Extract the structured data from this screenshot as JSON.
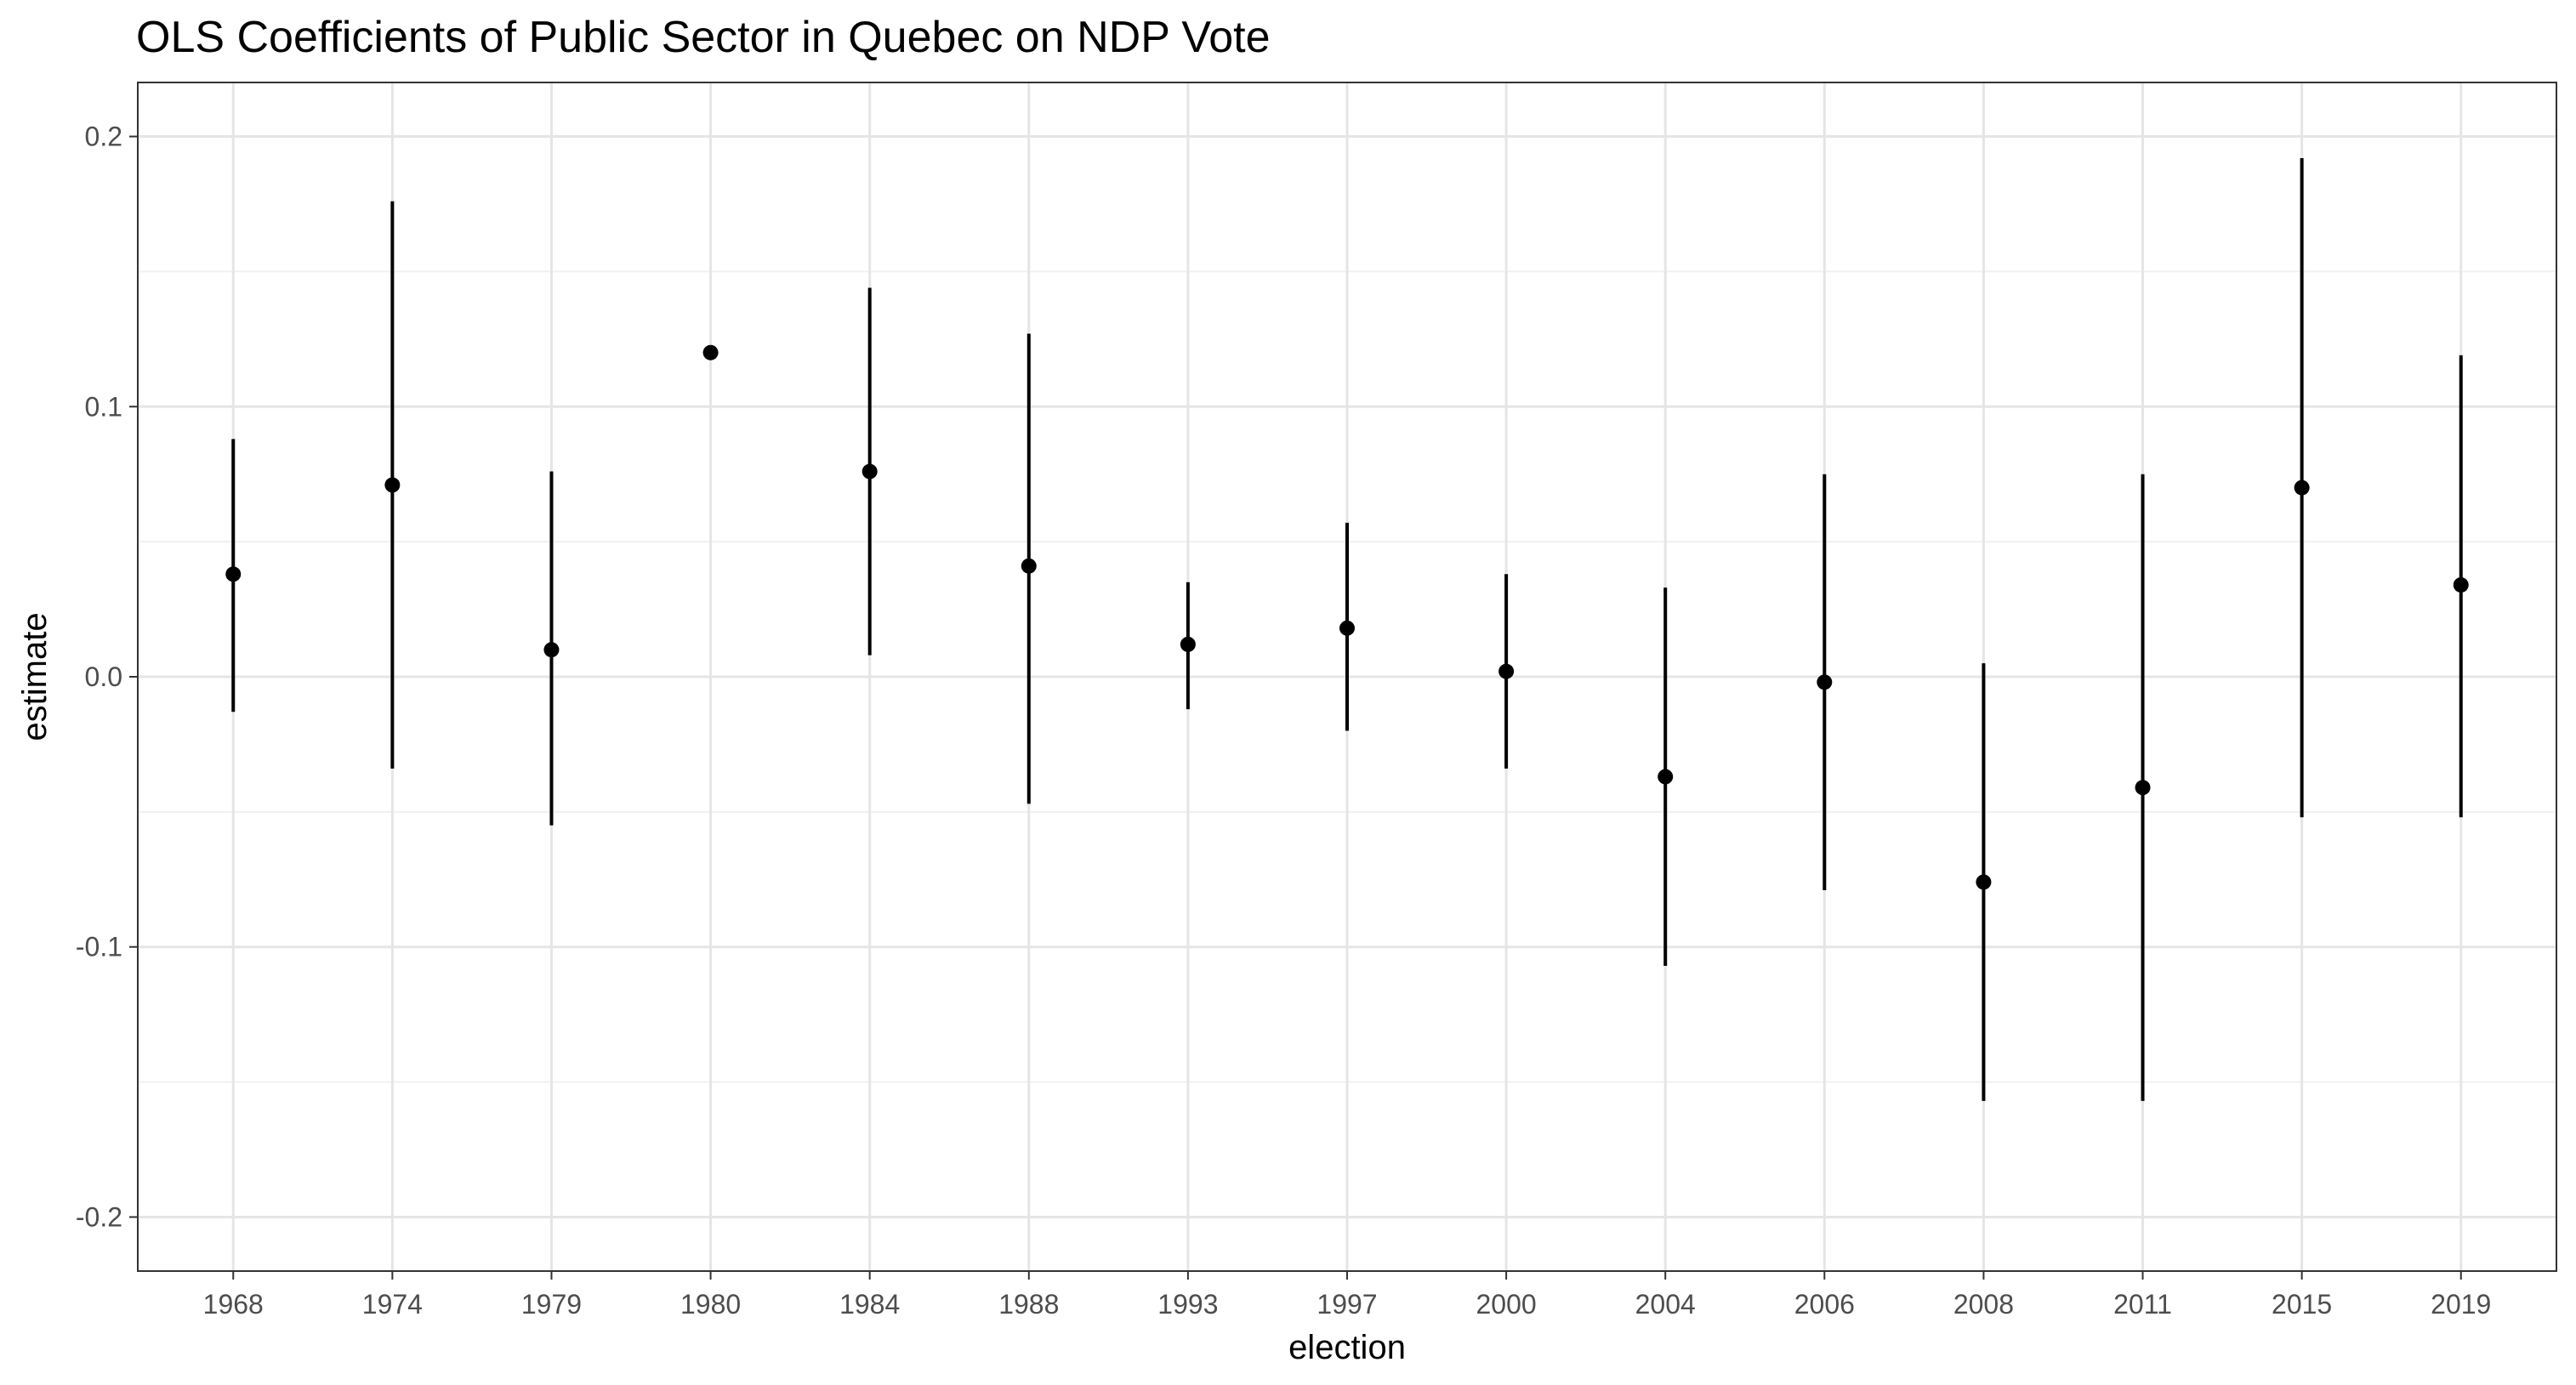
{
  "chart_data": {
    "type": "scatter",
    "title": "OLS Coefficients of Public Sector in Quebec on NDP Vote",
    "xlabel": "election",
    "ylabel": "estimate",
    "categories": [
      "1968",
      "1974",
      "1979",
      "1980",
      "1984",
      "1988",
      "1993",
      "1997",
      "2000",
      "2004",
      "2006",
      "2008",
      "2011",
      "2015",
      "2019"
    ],
    "estimate": [
      0.038,
      0.071,
      0.01,
      0.12,
      0.076,
      0.041,
      0.012,
      0.018,
      0.002,
      -0.037,
      -0.002,
      -0.076,
      -0.041,
      0.07,
      0.034
    ],
    "conf_low": [
      -0.013,
      -0.034,
      -0.055,
      null,
      0.008,
      -0.047,
      -0.012,
      -0.02,
      -0.034,
      -0.107,
      -0.079,
      -0.157,
      -0.157,
      -0.052,
      -0.052
    ],
    "conf_high": [
      0.088,
      0.176,
      0.076,
      null,
      0.144,
      0.127,
      0.035,
      0.057,
      0.038,
      0.033,
      0.075,
      0.005,
      0.075,
      0.192,
      0.119
    ],
    "ylim": [
      -0.22,
      0.22
    ],
    "yticks": [
      -0.2,
      -0.1,
      0.0,
      0.1,
      0.2
    ],
    "ytick_labels": [
      "-0.2",
      "-0.1",
      "0.0",
      "0.1",
      "0.2"
    ],
    "grid": true,
    "legend": "none",
    "colors": {
      "point": "#000000",
      "errorbar": "#000000",
      "grid_major": "#e5e5e5",
      "grid_minor": "#f0f0f0",
      "panel_border": "#333333",
      "tick_text": "#4d4d4d"
    }
  }
}
